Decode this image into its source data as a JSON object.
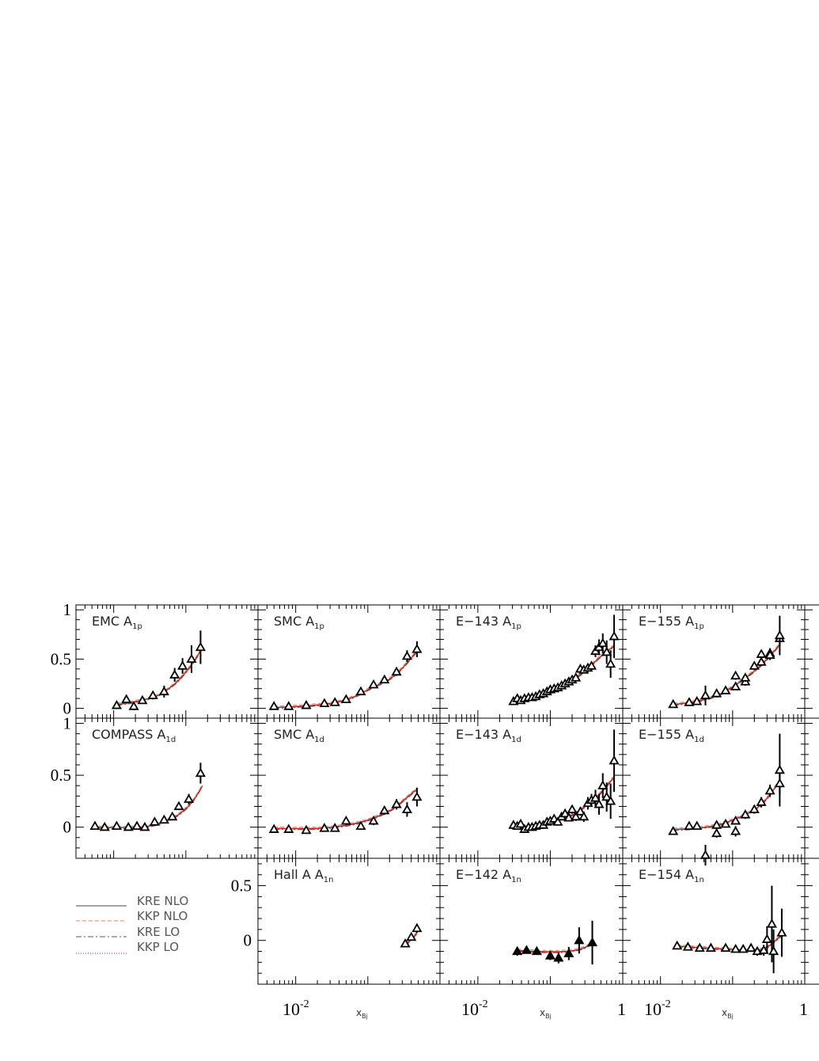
{
  "figure": {
    "colors": {
      "kre_nlo": "#444444",
      "kkp_nlo": "#e08060",
      "kre_lo": "#555555",
      "kkp_lo": "#d02020",
      "data": "#000000"
    }
  },
  "legend": {
    "items": [
      {
        "label": "KRE NLO",
        "style": "solid",
        "color": "#444444"
      },
      {
        "label": "KKP NLO",
        "style": "dashed",
        "color": "#e08060"
      },
      {
        "label": "KRE LO",
        "style": "dashdot",
        "color": "#555555"
      },
      {
        "label": "KKP LO",
        "style": "dotted",
        "color": "#d02020"
      }
    ]
  },
  "x_axis": {
    "label": "x",
    "label_sub": "Bj",
    "scale": "log",
    "range": [
      0.003,
      1.0
    ],
    "tick_labels": [
      {
        "base": "10",
        "exp": "-2",
        "value": 0.01
      },
      {
        "base": "1",
        "exp": "",
        "value": 1
      }
    ]
  },
  "row_ticks": [
    [
      "1",
      "0.5",
      "0"
    ],
    [
      "1",
      "0.5",
      "0"
    ],
    [
      "0.5",
      "0"
    ]
  ],
  "chart_data": [
    {
      "type": "scatter",
      "row": 0,
      "col": 0,
      "title": "EMC A",
      "sub": "1p",
      "xlim": [
        0.003,
        1.0
      ],
      "ylim": [
        -0.1,
        1.05
      ],
      "filled": false,
      "points": [
        [
          0.011,
          0.03,
          0.02
        ],
        [
          0.015,
          0.09,
          0.03
        ],
        [
          0.019,
          0.02,
          0.04
        ],
        [
          0.025,
          0.08,
          0.03
        ],
        [
          0.035,
          0.13,
          0.04
        ],
        [
          0.05,
          0.17,
          0.06
        ],
        [
          0.07,
          0.34,
          0.07
        ],
        [
          0.09,
          0.43,
          0.08
        ],
        [
          0.12,
          0.5,
          0.14
        ],
        [
          0.16,
          0.62,
          0.17
        ]
      ],
      "curve": [
        [
          0.011,
          0.04
        ],
        [
          0.02,
          0.07
        ],
        [
          0.04,
          0.13
        ],
        [
          0.07,
          0.25
        ],
        [
          0.1,
          0.37
        ],
        [
          0.13,
          0.48
        ],
        [
          0.17,
          0.62
        ]
      ]
    },
    {
      "type": "scatter",
      "row": 0,
      "col": 1,
      "title": "SMC A",
      "sub": "1p",
      "xlim": [
        0.003,
        1.0
      ],
      "ylim": [
        -0.1,
        1.05
      ],
      "filled": false,
      "points": [
        [
          0.005,
          0.02,
          0.02
        ],
        [
          0.008,
          0.02,
          0.02
        ],
        [
          0.014,
          0.03,
          0.02
        ],
        [
          0.025,
          0.05,
          0.02
        ],
        [
          0.035,
          0.06,
          0.02
        ],
        [
          0.05,
          0.09,
          0.02
        ],
        [
          0.08,
          0.17,
          0.03
        ],
        [
          0.12,
          0.24,
          0.03
        ],
        [
          0.17,
          0.29,
          0.03
        ],
        [
          0.25,
          0.37,
          0.04
        ],
        [
          0.35,
          0.53,
          0.06
        ],
        [
          0.48,
          0.6,
          0.08
        ]
      ],
      "curve": [
        [
          0.005,
          0.01
        ],
        [
          0.01,
          0.02
        ],
        [
          0.03,
          0.05
        ],
        [
          0.06,
          0.11
        ],
        [
          0.1,
          0.19
        ],
        [
          0.2,
          0.3
        ],
        [
          0.3,
          0.41
        ],
        [
          0.48,
          0.58
        ]
      ]
    },
    {
      "type": "scatter",
      "row": 0,
      "col": 2,
      "title": "E−143 A",
      "sub": "1p",
      "xlim": [
        0.003,
        1.0
      ],
      "ylim": [
        -0.1,
        1.05
      ],
      "filled": false,
      "points": [
        [
          0.031,
          0.07,
          0.02
        ],
        [
          0.035,
          0.1,
          0.02
        ],
        [
          0.039,
          0.08,
          0.02
        ],
        [
          0.044,
          0.1,
          0.02
        ],
        [
          0.05,
          0.11,
          0.02
        ],
        [
          0.056,
          0.11,
          0.02
        ],
        [
          0.063,
          0.12,
          0.02
        ],
        [
          0.071,
          0.14,
          0.02
        ],
        [
          0.08,
          0.15,
          0.02
        ],
        [
          0.09,
          0.17,
          0.02
        ],
        [
          0.1,
          0.19,
          0.02
        ],
        [
          0.113,
          0.2,
          0.02
        ],
        [
          0.127,
          0.21,
          0.02
        ],
        [
          0.143,
          0.23,
          0.02
        ],
        [
          0.16,
          0.25,
          0.02
        ],
        [
          0.18,
          0.27,
          0.02
        ],
        [
          0.2,
          0.29,
          0.02
        ],
        [
          0.225,
          0.31,
          0.02
        ],
        [
          0.26,
          0.4,
          0.03
        ],
        [
          0.29,
          0.39,
          0.03
        ],
        [
          0.33,
          0.41,
          0.04
        ],
        [
          0.37,
          0.43,
          0.04
        ],
        [
          0.42,
          0.58,
          0.06
        ],
        [
          0.47,
          0.62,
          0.08
        ],
        [
          0.53,
          0.66,
          0.1
        ],
        [
          0.6,
          0.57,
          0.12
        ],
        [
          0.68,
          0.45,
          0.14
        ],
        [
          0.76,
          0.73,
          0.22
        ]
      ],
      "curve": [
        [
          0.03,
          0.06
        ],
        [
          0.05,
          0.1
        ],
        [
          0.1,
          0.18
        ],
        [
          0.2,
          0.29
        ],
        [
          0.3,
          0.38
        ],
        [
          0.45,
          0.5
        ],
        [
          0.6,
          0.58
        ],
        [
          0.75,
          0.63
        ]
      ]
    },
    {
      "type": "scatter",
      "row": 0,
      "col": 3,
      "title": "E−155 A",
      "sub": "1p",
      "xlim": [
        0.003,
        1.0
      ],
      "ylim": [
        -0.1,
        1.05
      ],
      "filled": false,
      "points": [
        [
          0.015,
          0.04,
          0.02
        ],
        [
          0.025,
          0.06,
          0.02
        ],
        [
          0.032,
          0.07,
          0.03
        ],
        [
          0.042,
          0.13,
          0.1
        ],
        [
          0.06,
          0.15,
          0.04
        ],
        [
          0.08,
          0.18,
          0.03
        ],
        [
          0.11,
          0.22,
          0.03
        ],
        [
          0.11,
          0.33,
          0.04
        ],
        [
          0.15,
          0.27,
          0.04
        ],
        [
          0.15,
          0.31,
          0.04
        ],
        [
          0.2,
          0.43,
          0.04
        ],
        [
          0.25,
          0.55,
          0.04
        ],
        [
          0.25,
          0.47,
          0.04
        ],
        [
          0.33,
          0.56,
          0.05
        ],
        [
          0.33,
          0.54,
          0.05
        ],
        [
          0.45,
          0.71,
          0.08
        ],
        [
          0.45,
          0.74,
          0.2
        ]
      ],
      "curve": [
        [
          0.015,
          0.04
        ],
        [
          0.03,
          0.07
        ],
        [
          0.06,
          0.13
        ],
        [
          0.1,
          0.22
        ],
        [
          0.2,
          0.38
        ],
        [
          0.3,
          0.5
        ],
        [
          0.45,
          0.65
        ]
      ]
    },
    {
      "type": "scatter",
      "row": 1,
      "col": 0,
      "title": "COMPASS A",
      "sub": "1d",
      "xlim": [
        0.003,
        1.0
      ],
      "ylim": [
        -0.3,
        1.05
      ],
      "filled": false,
      "points": [
        [
          0.0055,
          0.01,
          0.01
        ],
        [
          0.0075,
          0.0,
          0.01
        ],
        [
          0.011,
          0.01,
          0.01
        ],
        [
          0.016,
          0.0,
          0.01
        ],
        [
          0.021,
          0.01,
          0.01
        ],
        [
          0.027,
          0.0,
          0.01
        ],
        [
          0.037,
          0.05,
          0.02
        ],
        [
          0.05,
          0.07,
          0.02
        ],
        [
          0.065,
          0.1,
          0.02
        ],
        [
          0.08,
          0.2,
          0.03
        ],
        [
          0.11,
          0.27,
          0.05
        ],
        [
          0.16,
          0.52,
          0.1
        ]
      ],
      "curve": [
        [
          0.005,
          0.0
        ],
        [
          0.02,
          0.0
        ],
        [
          0.04,
          0.03
        ],
        [
          0.07,
          0.1
        ],
        [
          0.1,
          0.18
        ],
        [
          0.13,
          0.27
        ],
        [
          0.17,
          0.4
        ]
      ]
    },
    {
      "type": "scatter",
      "row": 1,
      "col": 1,
      "title": "SMC A",
      "sub": "1d",
      "xlim": [
        0.003,
        1.0
      ],
      "ylim": [
        -0.3,
        1.05
      ],
      "filled": false,
      "points": [
        [
          0.005,
          -0.02,
          0.01
        ],
        [
          0.008,
          -0.02,
          0.01
        ],
        [
          0.014,
          -0.03,
          0.02
        ],
        [
          0.025,
          -0.01,
          0.02
        ],
        [
          0.035,
          -0.01,
          0.02
        ],
        [
          0.05,
          0.06,
          0.03
        ],
        [
          0.08,
          0.01,
          0.03
        ],
        [
          0.12,
          0.06,
          0.04
        ],
        [
          0.17,
          0.16,
          0.04
        ],
        [
          0.25,
          0.22,
          0.05
        ],
        [
          0.35,
          0.17,
          0.07
        ],
        [
          0.48,
          0.29,
          0.09
        ]
      ],
      "curve": [
        [
          0.005,
          -0.01
        ],
        [
          0.02,
          -0.01
        ],
        [
          0.05,
          0.02
        ],
        [
          0.1,
          0.07
        ],
        [
          0.2,
          0.16
        ],
        [
          0.3,
          0.25
        ],
        [
          0.48,
          0.37
        ]
      ]
    },
    {
      "type": "scatter",
      "row": 1,
      "col": 2,
      "title": "E−143 A",
      "sub": "1d",
      "xlim": [
        0.003,
        1.0
      ],
      "ylim": [
        -0.3,
        1.05
      ],
      "filled": false,
      "points": [
        [
          0.031,
          0.02,
          0.03
        ],
        [
          0.035,
          0.01,
          0.03
        ],
        [
          0.039,
          0.03,
          0.03
        ],
        [
          0.044,
          -0.02,
          0.03
        ],
        [
          0.05,
          0.0,
          0.03
        ],
        [
          0.056,
          0.0,
          0.03
        ],
        [
          0.063,
          0.01,
          0.03
        ],
        [
          0.071,
          0.02,
          0.03
        ],
        [
          0.08,
          0.02,
          0.03
        ],
        [
          0.09,
          0.05,
          0.03
        ],
        [
          0.1,
          0.06,
          0.03
        ],
        [
          0.113,
          0.08,
          0.03
        ],
        [
          0.127,
          0.05,
          0.03
        ],
        [
          0.143,
          0.1,
          0.03
        ],
        [
          0.16,
          0.13,
          0.03
        ],
        [
          0.18,
          0.09,
          0.03
        ],
        [
          0.2,
          0.17,
          0.04
        ],
        [
          0.225,
          0.1,
          0.04
        ],
        [
          0.26,
          0.15,
          0.04
        ],
        [
          0.29,
          0.1,
          0.05
        ],
        [
          0.33,
          0.23,
          0.06
        ],
        [
          0.37,
          0.26,
          0.06
        ],
        [
          0.42,
          0.28,
          0.08
        ],
        [
          0.47,
          0.22,
          0.1
        ],
        [
          0.53,
          0.4,
          0.12
        ],
        [
          0.6,
          0.29,
          0.14
        ],
        [
          0.68,
          0.25,
          0.17
        ],
        [
          0.76,
          0.64,
          0.3
        ]
      ],
      "curve": [
        [
          0.03,
          0.0
        ],
        [
          0.06,
          0.01
        ],
        [
          0.1,
          0.05
        ],
        [
          0.2,
          0.12
        ],
        [
          0.3,
          0.2
        ],
        [
          0.45,
          0.3
        ],
        [
          0.6,
          0.4
        ],
        [
          0.75,
          0.48
        ]
      ]
    },
    {
      "type": "scatter",
      "row": 1,
      "col": 3,
      "title": "E−155 A",
      "sub": "1d",
      "xlim": [
        0.003,
        1.0
      ],
      "ylim": [
        -0.3,
        1.05
      ],
      "filled": false,
      "points": [
        [
          0.015,
          -0.04,
          0.02
        ],
        [
          0.025,
          0.01,
          0.02
        ],
        [
          0.032,
          0.01,
          0.03
        ],
        [
          0.042,
          -0.27,
          0.1
        ],
        [
          0.06,
          0.02,
          0.04
        ],
        [
          0.06,
          -0.06,
          0.04
        ],
        [
          0.08,
          0.03,
          0.03
        ],
        [
          0.11,
          0.06,
          0.03
        ],
        [
          0.11,
          -0.04,
          0.05
        ],
        [
          0.15,
          0.12,
          0.04
        ],
        [
          0.2,
          0.17,
          0.04
        ],
        [
          0.25,
          0.24,
          0.05
        ],
        [
          0.33,
          0.35,
          0.06
        ],
        [
          0.45,
          0.55,
          0.35
        ],
        [
          0.45,
          0.42,
          0.1
        ]
      ],
      "curve": [
        [
          0.015,
          -0.02
        ],
        [
          0.03,
          -0.01
        ],
        [
          0.06,
          0.02
        ],
        [
          0.1,
          0.07
        ],
        [
          0.2,
          0.17
        ],
        [
          0.3,
          0.28
        ],
        [
          0.45,
          0.45
        ]
      ]
    },
    {
      "type": "scatter",
      "row": 2,
      "col": 1,
      "title": "Hall A A",
      "sub": "1n",
      "xlim": [
        0.003,
        1.0
      ],
      "ylim": [
        -0.4,
        0.75
      ],
      "filled": false,
      "points": [
        [
          0.33,
          -0.03,
          0.03
        ],
        [
          0.4,
          0.03,
          0.03
        ],
        [
          0.48,
          0.11,
          0.04
        ]
      ],
      "curve": [
        [
          0.33,
          -0.04
        ],
        [
          0.4,
          0.01
        ],
        [
          0.48,
          0.07
        ]
      ]
    },
    {
      "type": "scatter",
      "row": 2,
      "col": 2,
      "title": "E−142 A",
      "sub": "1n",
      "xlim": [
        0.003,
        1.0
      ],
      "ylim": [
        -0.4,
        0.75
      ],
      "filled": true,
      "points": [
        [
          0.035,
          -0.1,
          0.04
        ],
        [
          0.047,
          -0.09,
          0.03
        ],
        [
          0.065,
          -0.1,
          0.03
        ],
        [
          0.1,
          -0.14,
          0.04
        ],
        [
          0.13,
          -0.16,
          0.05
        ],
        [
          0.18,
          -0.12,
          0.06
        ],
        [
          0.25,
          0.0,
          0.12
        ],
        [
          0.38,
          -0.02,
          0.2
        ]
      ],
      "curve": [
        [
          0.035,
          -0.09
        ],
        [
          0.07,
          -0.1
        ],
        [
          0.15,
          -0.1
        ],
        [
          0.25,
          -0.08
        ],
        [
          0.35,
          -0.04
        ],
        [
          0.4,
          0.0
        ]
      ]
    },
    {
      "type": "scatter",
      "row": 2,
      "col": 3,
      "title": "E−154 A",
      "sub": "1n",
      "xlim": [
        0.003,
        1.0
      ],
      "ylim": [
        -0.4,
        0.75
      ],
      "filled": false,
      "points": [
        [
          0.017,
          -0.05,
          0.01
        ],
        [
          0.024,
          -0.06,
          0.01
        ],
        [
          0.035,
          -0.07,
          0.01
        ],
        [
          0.05,
          -0.07,
          0.01
        ],
        [
          0.08,
          -0.07,
          0.02
        ],
        [
          0.11,
          -0.08,
          0.02
        ],
        [
          0.14,
          -0.08,
          0.02
        ],
        [
          0.18,
          -0.07,
          0.02
        ],
        [
          0.22,
          -0.1,
          0.04
        ],
        [
          0.27,
          -0.09,
          0.05
        ],
        [
          0.3,
          0.01,
          0.12
        ],
        [
          0.35,
          0.15,
          0.35
        ],
        [
          0.37,
          -0.1,
          0.2
        ],
        [
          0.48,
          0.07,
          0.22
        ]
      ],
      "curve": [
        [
          0.017,
          -0.05
        ],
        [
          0.05,
          -0.07
        ],
        [
          0.1,
          -0.08
        ],
        [
          0.2,
          -0.09
        ],
        [
          0.3,
          -0.06
        ],
        [
          0.48,
          0.05
        ]
      ]
    }
  ]
}
